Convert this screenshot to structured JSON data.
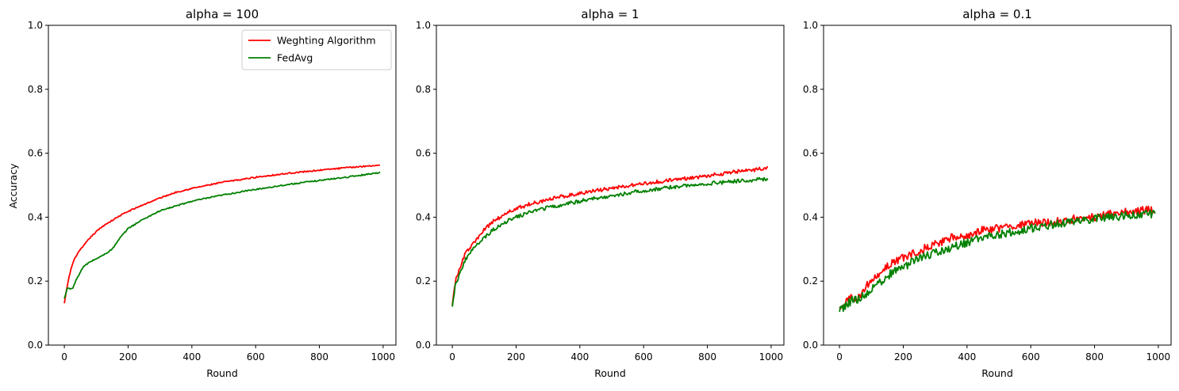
{
  "figure": {
    "ylabel_shared": "Accuracy"
  },
  "chart_data": [
    {
      "type": "line",
      "title": "alpha = 100",
      "xlabel": "Round",
      "ylabel": "Accuracy",
      "xlim": [
        -50,
        1040
      ],
      "ylim": [
        0.0,
        1.0
      ],
      "xticks": [
        0,
        200,
        400,
        600,
        800,
        1000
      ],
      "xtick_labels": [
        "0",
        "200",
        "400",
        "600",
        "800",
        "1000"
      ],
      "yticks": [
        0.0,
        0.2,
        0.4,
        0.6,
        0.8,
        1.0
      ],
      "ytick_labels": [
        "0.0",
        "0.2",
        "0.4",
        "0.6",
        "0.8",
        "1.0"
      ],
      "legend": {
        "position": "top-right",
        "entries": [
          "Weghting Algorithm",
          "FedAvg"
        ]
      },
      "series": [
        {
          "name": "Weghting Algorithm",
          "color": "#ff0000",
          "noise": 0.002,
          "x": [
            0,
            10,
            20,
            30,
            40,
            60,
            80,
            100,
            125,
            150,
            175,
            200,
            250,
            300,
            350,
            400,
            450,
            500,
            550,
            600,
            700,
            800,
            900,
            990
          ],
          "y": [
            0.13,
            0.19,
            0.235,
            0.265,
            0.285,
            0.31,
            0.335,
            0.355,
            0.375,
            0.39,
            0.405,
            0.418,
            0.44,
            0.46,
            0.478,
            0.49,
            0.5,
            0.51,
            0.517,
            0.525,
            0.537,
            0.547,
            0.556,
            0.563
          ]
        },
        {
          "name": "FedAvg",
          "color": "#008000",
          "noise": 0.002,
          "x": [
            0,
            10,
            25,
            40,
            60,
            80,
            100,
            120,
            150,
            175,
            200,
            250,
            300,
            350,
            400,
            450,
            500,
            600,
            700,
            800,
            900,
            990
          ],
          "y": [
            0.145,
            0.18,
            0.175,
            0.21,
            0.245,
            0.26,
            0.27,
            0.28,
            0.3,
            0.335,
            0.365,
            0.395,
            0.42,
            0.435,
            0.45,
            0.46,
            0.47,
            0.487,
            0.502,
            0.515,
            0.527,
            0.54
          ]
        }
      ]
    },
    {
      "type": "line",
      "title": "alpha = 1",
      "xlabel": "Round",
      "ylabel": "",
      "xlim": [
        -50,
        1040
      ],
      "ylim": [
        0.0,
        1.0
      ],
      "xticks": [
        0,
        200,
        400,
        600,
        800,
        1000
      ],
      "xtick_labels": [
        "0",
        "200",
        "400",
        "600",
        "800",
        "1000"
      ],
      "yticks": [
        0.0,
        0.2,
        0.4,
        0.6,
        0.8,
        1.0
      ],
      "ytick_labels": [
        "0.0",
        "0.2",
        "0.4",
        "0.6",
        "0.8",
        "1.0"
      ],
      "series": [
        {
          "name": "Weghting Algorithm",
          "color": "#ff0000",
          "noise": 0.006,
          "x": [
            0,
            10,
            20,
            30,
            40,
            60,
            80,
            100,
            125,
            150,
            175,
            200,
            250,
            300,
            350,
            400,
            450,
            500,
            600,
            700,
            800,
            900,
            990
          ],
          "y": [
            0.13,
            0.2,
            0.23,
            0.26,
            0.285,
            0.31,
            0.335,
            0.36,
            0.385,
            0.4,
            0.415,
            0.427,
            0.443,
            0.455,
            0.466,
            0.475,
            0.483,
            0.49,
            0.505,
            0.517,
            0.53,
            0.543,
            0.553
          ]
        },
        {
          "name": "FedAvg",
          "color": "#008000",
          "noise": 0.006,
          "x": [
            0,
            10,
            20,
            30,
            40,
            60,
            80,
            100,
            125,
            150,
            175,
            200,
            250,
            300,
            350,
            400,
            450,
            500,
            600,
            700,
            800,
            900,
            990
          ],
          "y": [
            0.125,
            0.19,
            0.215,
            0.24,
            0.265,
            0.295,
            0.315,
            0.335,
            0.358,
            0.375,
            0.39,
            0.4,
            0.418,
            0.43,
            0.44,
            0.45,
            0.459,
            0.467,
            0.483,
            0.495,
            0.505,
            0.513,
            0.52
          ]
        }
      ]
    },
    {
      "type": "line",
      "title": "alpha = 0.1",
      "xlabel": "Round",
      "ylabel": "",
      "xlim": [
        -50,
        1040
      ],
      "ylim": [
        0.0,
        1.0
      ],
      "xticks": [
        0,
        200,
        400,
        600,
        800,
        1000
      ],
      "xtick_labels": [
        "0",
        "200",
        "400",
        "600",
        "800",
        "1000"
      ],
      "yticks": [
        0.0,
        0.2,
        0.4,
        0.6,
        0.8,
        1.0
      ],
      "ytick_labels": [
        "0.0",
        "0.2",
        "0.4",
        "0.6",
        "0.8",
        "1.0"
      ],
      "series": [
        {
          "name": "Weghting Algorithm",
          "color": "#ff0000",
          "noise": 0.013,
          "x": [
            0,
            20,
            40,
            60,
            80,
            100,
            125,
            150,
            175,
            200,
            250,
            300,
            350,
            400,
            450,
            500,
            550,
            600,
            650,
            700,
            750,
            800,
            850,
            900,
            950,
            990
          ],
          "y": [
            0.12,
            0.13,
            0.15,
            0.15,
            0.18,
            0.2,
            0.22,
            0.25,
            0.26,
            0.275,
            0.295,
            0.315,
            0.335,
            0.34,
            0.36,
            0.365,
            0.37,
            0.38,
            0.385,
            0.39,
            0.395,
            0.4,
            0.41,
            0.415,
            0.42,
            0.425
          ]
        },
        {
          "name": "FedAvg",
          "color": "#008000",
          "noise": 0.013,
          "x": [
            0,
            20,
            40,
            60,
            80,
            100,
            125,
            150,
            175,
            200,
            250,
            300,
            350,
            400,
            450,
            500,
            550,
            600,
            650,
            700,
            750,
            800,
            850,
            900,
            950,
            990
          ],
          "y": [
            0.105,
            0.125,
            0.14,
            0.145,
            0.155,
            0.175,
            0.195,
            0.215,
            0.235,
            0.245,
            0.27,
            0.29,
            0.305,
            0.32,
            0.335,
            0.345,
            0.355,
            0.365,
            0.375,
            0.38,
            0.39,
            0.395,
            0.4,
            0.405,
            0.41,
            0.41
          ]
        }
      ]
    }
  ]
}
